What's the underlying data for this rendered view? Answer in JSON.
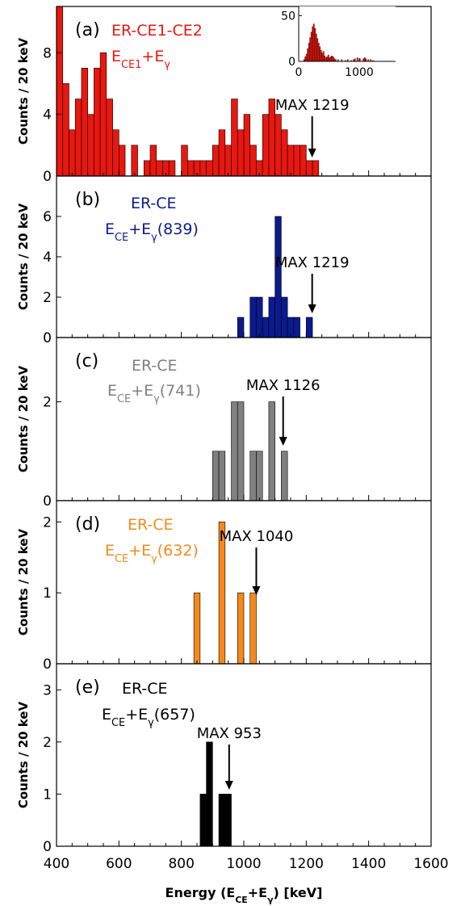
{
  "chart_data": [
    {
      "type": "bar",
      "panel_label": "(a)",
      "color": "#e8170f",
      "legend": [
        "ER-CE1-CE2",
        "E_CE1+E_γ"
      ],
      "ylabel": "Counts / 20 keV",
      "ylim": [
        0,
        11
      ],
      "yticks": [
        0,
        4,
        8
      ],
      "xlim": [
        400,
        1600
      ],
      "bin_width": 20,
      "annotation": "MAX 1219",
      "arrow_x": 1219,
      "bins": [
        {
          "x": 400,
          "y": 11
        },
        {
          "x": 420,
          "y": 6
        },
        {
          "x": 440,
          "y": 3
        },
        {
          "x": 460,
          "y": 5
        },
        {
          "x": 480,
          "y": 7
        },
        {
          "x": 500,
          "y": 4
        },
        {
          "x": 520,
          "y": 7
        },
        {
          "x": 540,
          "y": 8
        },
        {
          "x": 560,
          "y": 5
        },
        {
          "x": 580,
          "y": 3
        },
        {
          "x": 600,
          "y": 2
        },
        {
          "x": 640,
          "y": 2
        },
        {
          "x": 680,
          "y": 1
        },
        {
          "x": 700,
          "y": 2
        },
        {
          "x": 720,
          "y": 1
        },
        {
          "x": 740,
          "y": 1
        },
        {
          "x": 760,
          "y": 1
        },
        {
          "x": 800,
          "y": 2
        },
        {
          "x": 820,
          "y": 1
        },
        {
          "x": 840,
          "y": 1
        },
        {
          "x": 860,
          "y": 1
        },
        {
          "x": 880,
          "y": 1
        },
        {
          "x": 900,
          "y": 2
        },
        {
          "x": 920,
          "y": 3
        },
        {
          "x": 940,
          "y": 2
        },
        {
          "x": 960,
          "y": 5
        },
        {
          "x": 980,
          "y": 3
        },
        {
          "x": 1000,
          "y": 4
        },
        {
          "x": 1020,
          "y": 2
        },
        {
          "x": 1040,
          "y": 1
        },
        {
          "x": 1060,
          "y": 4
        },
        {
          "x": 1080,
          "y": 5
        },
        {
          "x": 1100,
          "y": 4
        },
        {
          "x": 1120,
          "y": 3
        },
        {
          "x": 1140,
          "y": 2
        },
        {
          "x": 1160,
          "y": 2
        },
        {
          "x": 1180,
          "y": 2
        },
        {
          "x": 1200,
          "y": 1
        },
        {
          "x": 1220,
          "y": 1
        }
      ],
      "inset": {
        "xlim": [
          0,
          1600
        ],
        "ylim": [
          0,
          60
        ],
        "xticks": [
          0,
          1000
        ],
        "yticks": [
          0,
          50
        ],
        "bin_width": 20,
        "values": [
          {
            "x": 80,
            "y": 2
          },
          {
            "x": 100,
            "y": 5
          },
          {
            "x": 120,
            "y": 8
          },
          {
            "x": 140,
            "y": 14
          },
          {
            "x": 160,
            "y": 20
          },
          {
            "x": 180,
            "y": 26
          },
          {
            "x": 200,
            "y": 32
          },
          {
            "x": 220,
            "y": 38
          },
          {
            "x": 240,
            "y": 41
          },
          {
            "x": 260,
            "y": 36
          },
          {
            "x": 280,
            "y": 30
          },
          {
            "x": 300,
            "y": 25
          },
          {
            "x": 320,
            "y": 20
          },
          {
            "x": 340,
            "y": 16
          },
          {
            "x": 360,
            "y": 12
          },
          {
            "x": 380,
            "y": 9
          },
          {
            "x": 400,
            "y": 11
          },
          {
            "x": 420,
            "y": 6
          },
          {
            "x": 440,
            "y": 4
          },
          {
            "x": 460,
            "y": 5
          },
          {
            "x": 480,
            "y": 7
          },
          {
            "x": 500,
            "y": 4
          },
          {
            "x": 520,
            "y": 5
          },
          {
            "x": 540,
            "y": 6
          },
          {
            "x": 560,
            "y": 5
          },
          {
            "x": 580,
            "y": 3
          },
          {
            "x": 600,
            "y": 2
          },
          {
            "x": 640,
            "y": 2
          },
          {
            "x": 700,
            "y": 2
          },
          {
            "x": 760,
            "y": 1
          },
          {
            "x": 800,
            "y": 2
          },
          {
            "x": 860,
            "y": 1
          },
          {
            "x": 900,
            "y": 2
          },
          {
            "x": 920,
            "y": 3
          },
          {
            "x": 960,
            "y": 4
          },
          {
            "x": 1000,
            "y": 3
          },
          {
            "x": 1060,
            "y": 3
          },
          {
            "x": 1080,
            "y": 4
          },
          {
            "x": 1100,
            "y": 3
          },
          {
            "x": 1140,
            "y": 2
          },
          {
            "x": 1180,
            "y": 2
          },
          {
            "x": 1220,
            "y": 1
          }
        ]
      }
    },
    {
      "type": "bar",
      "panel_label": "(b)",
      "color": "#0b1a8e",
      "legend": [
        "ER-CE",
        "E_CE+E_γ(839)"
      ],
      "ylabel": "Counts / 20 keV",
      "ylim": [
        0,
        8
      ],
      "yticks": [
        0,
        2,
        4,
        6
      ],
      "xlim": [
        400,
        1600
      ],
      "bin_width": 20,
      "annotation": "MAX 1219",
      "arrow_x": 1219,
      "bins": [
        {
          "x": 980,
          "y": 1
        },
        {
          "x": 1020,
          "y": 2
        },
        {
          "x": 1040,
          "y": 2
        },
        {
          "x": 1060,
          "y": 1
        },
        {
          "x": 1080,
          "y": 2
        },
        {
          "x": 1100,
          "y": 6
        },
        {
          "x": 1120,
          "y": 2
        },
        {
          "x": 1140,
          "y": 1
        },
        {
          "x": 1160,
          "y": 1
        },
        {
          "x": 1200,
          "y": 1
        }
      ]
    },
    {
      "type": "bar",
      "panel_label": "(c)",
      "color": "#808080",
      "legend": [
        "ER-CE",
        "E_CE+E_γ(741)"
      ],
      "ylabel": "Counts / 20 keV",
      "ylim": [
        0,
        3.3
      ],
      "yticks": [
        0,
        2
      ],
      "xlim": [
        400,
        1600
      ],
      "bin_width": 20,
      "annotation": "MAX 1126",
      "arrow_x": 1126,
      "bins": [
        {
          "x": 900,
          "y": 1
        },
        {
          "x": 920,
          "y": 1
        },
        {
          "x": 960,
          "y": 2
        },
        {
          "x": 980,
          "y": 2
        },
        {
          "x": 1020,
          "y": 1
        },
        {
          "x": 1040,
          "y": 1
        },
        {
          "x": 1080,
          "y": 2
        },
        {
          "x": 1120,
          "y": 1
        }
      ]
    },
    {
      "type": "bar",
      "panel_label": "(d)",
      "color": "#f7891a",
      "legend": [
        "ER-CE",
        "E_CE+E_γ(632)"
      ],
      "ylabel": "Counts / 20 keV",
      "ylim": [
        0,
        2.3
      ],
      "yticks": [
        0,
        1,
        2
      ],
      "xlim": [
        400,
        1600
      ],
      "bin_width": 20,
      "annotation": "MAX 1040",
      "arrow_x": 1040,
      "bins": [
        {
          "x": 840,
          "y": 1
        },
        {
          "x": 920,
          "y": 2
        },
        {
          "x": 980,
          "y": 1
        },
        {
          "x": 1020,
          "y": 1
        }
      ]
    },
    {
      "type": "bar",
      "panel_label": "(e)",
      "color": "#000000",
      "legend": [
        "ER-CE",
        "E_CE+E_γ(657)"
      ],
      "ylabel": "Counts / 20 keV",
      "ylim": [
        0,
        3.5
      ],
      "yticks": [
        0,
        1,
        2,
        3
      ],
      "xlim": [
        400,
        1600
      ],
      "bin_width": 20,
      "annotation": "MAX 953",
      "arrow_x": 953,
      "bins": [
        {
          "x": 860,
          "y": 1
        },
        {
          "x": 880,
          "y": 2
        },
        {
          "x": 920,
          "y": 1
        },
        {
          "x": 940,
          "y": 1
        }
      ]
    }
  ],
  "x_axis": {
    "label": "Energy (E_CE+E_γ)   [keV]",
    "ticks": [
      400,
      600,
      800,
      1000,
      1200,
      1400,
      1600
    ],
    "minor_step": 50
  }
}
